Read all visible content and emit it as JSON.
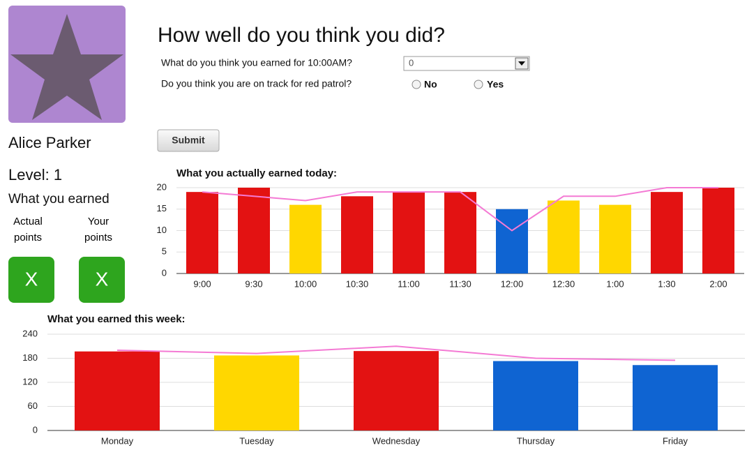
{
  "profile": {
    "name": "Alice Parker",
    "level": "Level: 1",
    "earned_heading": "What you earned",
    "actual_label": "Actual points",
    "your_label": "Your points",
    "actual_mark": "X",
    "your_mark": "X"
  },
  "form": {
    "title": "How well do you think you did?",
    "question_1": "What do you think you earned for 10:00AM?",
    "select_value": "0",
    "question_2": "Do you think you are on track for red patrol?",
    "option_no": "No",
    "option_yes": "Yes",
    "submit": "Submit"
  },
  "chart_data": [
    {
      "type": "bar",
      "title": "What you actually earned today:",
      "categories": [
        "9:00",
        "9:30",
        "10:00",
        "10:30",
        "11:00",
        "11:30",
        "12:00",
        "12:30",
        "1:00",
        "1:30",
        "2:00"
      ],
      "values": [
        19,
        20,
        16,
        18,
        19,
        19,
        15,
        17,
        16,
        19,
        20
      ],
      "colors": [
        "#e31212",
        "#e31212",
        "#ffd700",
        "#e31212",
        "#e31212",
        "#e31212",
        "#0f64d2",
        "#ffd700",
        "#ffd700",
        "#e31212",
        "#e31212"
      ],
      "line_values": [
        19,
        18,
        17,
        19,
        19,
        19,
        10,
        18,
        18,
        20,
        20
      ],
      "line_color": "#f47ad4",
      "ylim": [
        0,
        20
      ],
      "yticks": [
        0,
        5,
        10,
        15,
        20
      ],
      "grid": true
    },
    {
      "type": "bar",
      "title": "What you earned this week:",
      "categories": [
        "Monday",
        "Tuesday",
        "Wednesday",
        "Thursday",
        "Friday"
      ],
      "values": [
        197,
        187,
        198,
        173,
        163
      ],
      "colors": [
        "#e31212",
        "#ffd700",
        "#e31212",
        "#0f64d2",
        "#0f64d2"
      ],
      "line_values": [
        200,
        192,
        210,
        180,
        175
      ],
      "line_color": "#f47ad4",
      "ylim": [
        0,
        240
      ],
      "yticks": [
        0,
        60,
        120,
        180,
        240
      ],
      "grid": true
    }
  ]
}
